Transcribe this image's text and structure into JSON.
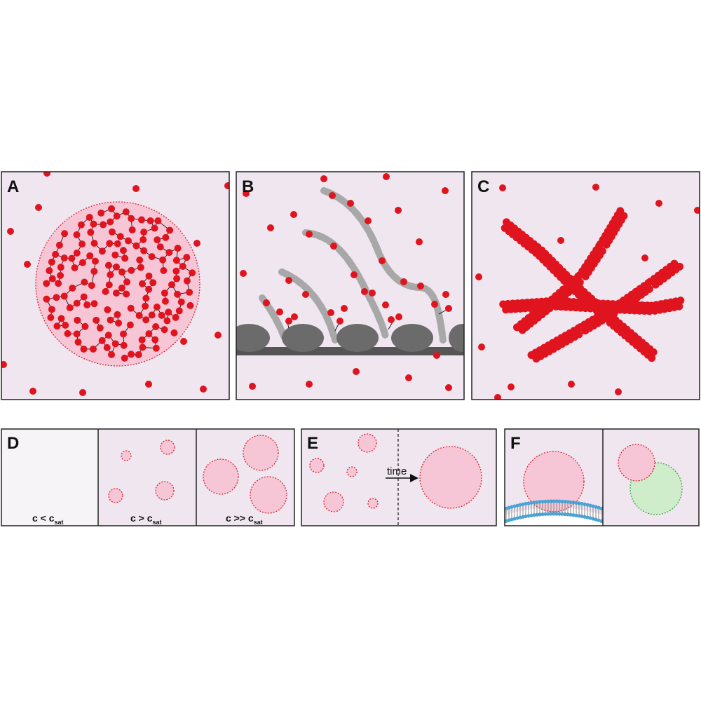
{
  "figure": {
    "panels": {
      "A": {
        "letter": "A"
      },
      "B": {
        "letter": "B"
      },
      "C": {
        "letter": "C"
      },
      "D": {
        "letter": "D",
        "conditions": [
          {
            "main": "c < c",
            "sub": "sat"
          },
          {
            "main": "c > c",
            "sub": "sat"
          },
          {
            "main": "c >> c",
            "sub": "sat"
          }
        ]
      },
      "E": {
        "letter": "E",
        "arrow_label": "time"
      },
      "F": {
        "letter": "F"
      }
    },
    "colors": {
      "panel_bg": "#efe6f0",
      "particle": "#e0141e",
      "droplet_fill": "#f7c6d6",
      "droplet_edge": "#d9242f",
      "filament": "#a8a8a8",
      "bead": "#6b6b6b",
      "membrane": "#4aa3d6",
      "green_droplet": "#cfeccb",
      "green_edge": "#3aa845"
    }
  }
}
